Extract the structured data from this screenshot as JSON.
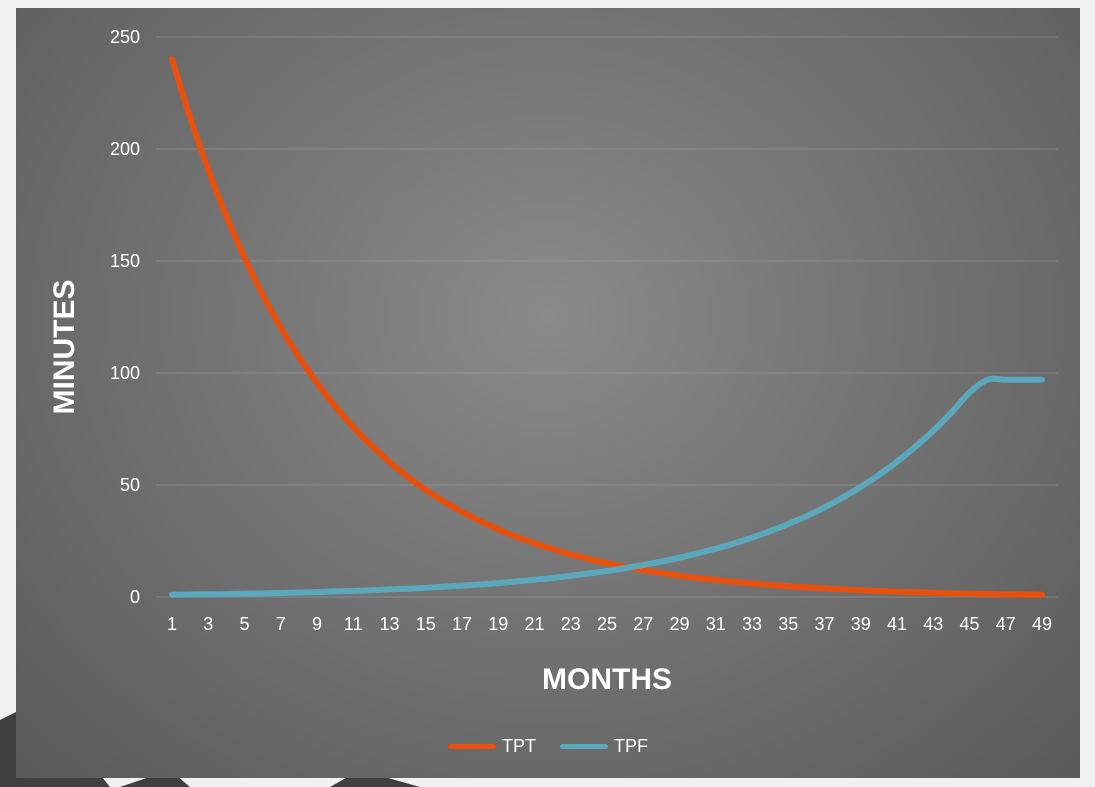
{
  "chart_data": {
    "type": "line",
    "title": "",
    "xlabel": "MONTHS",
    "ylabel": "MINUTES",
    "ylim": [
      0,
      250
    ],
    "yticks": [
      0,
      50,
      100,
      150,
      200,
      250
    ],
    "x": [
      1,
      2,
      3,
      4,
      5,
      6,
      7,
      8,
      9,
      10,
      11,
      12,
      13,
      14,
      15,
      16,
      17,
      18,
      19,
      20,
      21,
      22,
      23,
      24,
      25,
      26,
      27,
      28,
      29,
      30,
      31,
      32,
      33,
      34,
      35,
      36,
      37,
      38,
      39,
      40,
      41,
      42,
      43,
      44,
      45,
      46,
      47,
      48,
      49
    ],
    "xtick_labels": [
      "1",
      "3",
      "5",
      "7",
      "9",
      "11",
      "13",
      "15",
      "17",
      "19",
      "21",
      "23",
      "25",
      "27",
      "29",
      "31",
      "33",
      "35",
      "37",
      "39",
      "41",
      "43",
      "45",
      "47",
      "49"
    ],
    "grid": true,
    "legend_position": "bottom",
    "series": [
      {
        "name": "TPT",
        "color": "#e8500e",
        "values": [
          240,
          213.9,
          190.6,
          169.9,
          151.4,
          134.9,
          120.2,
          107.2,
          95.5,
          85.1,
          75.8,
          67.6,
          60.2,
          53.7,
          47.8,
          42.6,
          38.0,
          33.9,
          30.2,
          26.9,
          24.0,
          21.4,
          19.0,
          17.0,
          15.1,
          13.5,
          12.0,
          10.7,
          9.5,
          8.5,
          7.6,
          6.8,
          6.0,
          5.4,
          4.8,
          4.3,
          3.8,
          3.4,
          3.0,
          2.7,
          2.4,
          2.1,
          1.9,
          1.7,
          1.5,
          1.4,
          1.2,
          1.1,
          1.0
        ]
      },
      {
        "name": "TPF",
        "color": "#5ba8bd",
        "values": [
          1.0,
          1.1,
          1.2,
          1.3,
          1.5,
          1.6,
          1.8,
          2.0,
          2.2,
          2.5,
          2.7,
          3.0,
          3.4,
          3.7,
          4.1,
          4.6,
          5.1,
          5.6,
          6.2,
          6.9,
          7.7,
          8.5,
          9.5,
          10.5,
          11.6,
          12.9,
          14.3,
          15.8,
          17.6,
          19.5,
          21.6,
          23.9,
          26.5,
          29.4,
          32.6,
          36.1,
          40.0,
          44.4,
          49.2,
          54.5,
          60.4,
          67.0,
          74.2,
          82.3,
          91.2,
          97,
          97,
          97,
          97
        ]
      }
    ]
  }
}
